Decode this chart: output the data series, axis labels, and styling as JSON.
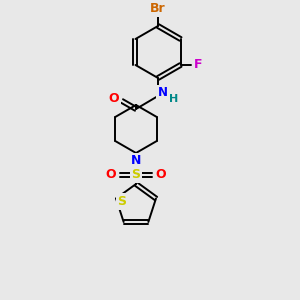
{
  "bg_color": "#e8e8e8",
  "bond_color": "#000000",
  "colors": {
    "Br": "#cc6600",
    "F": "#cc00cc",
    "N": "#0000ff",
    "O": "#ff0000",
    "S": "#cccc00",
    "H": "#008888",
    "C": "#000000"
  },
  "figsize": [
    3.0,
    3.0
  ],
  "dpi": 100
}
